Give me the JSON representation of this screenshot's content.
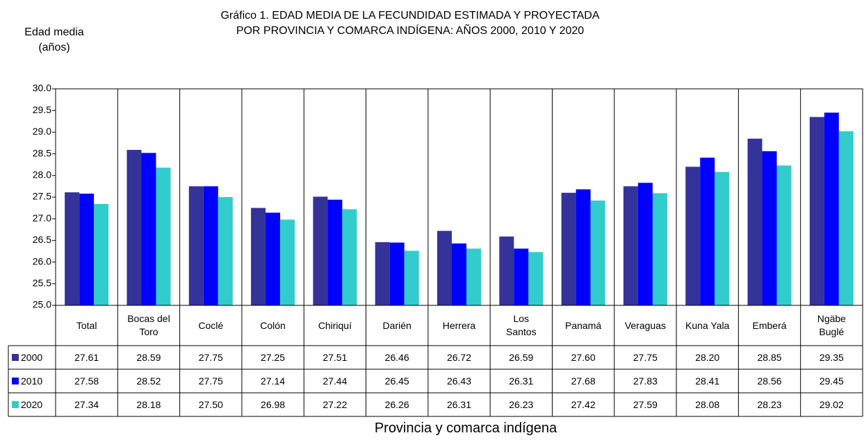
{
  "chart_data": {
    "type": "bar",
    "title": "Gráfico 1.  EDAD MEDIA DE LA FECUNDIDAD ESTIMADA Y PROYECTADA\nPOR PROVINCIA Y COMARCA INDÍGENA: AÑOS 2000, 2010 Y 2020",
    "y_label": "Edad media\n(años)",
    "x_label": "Provincia y comarca indígena",
    "categories": [
      "Total",
      "Bocas del\nToro",
      "Coclé",
      "Colón",
      "Chiriquí",
      "Darién",
      "Herrera",
      "Los\nSantos",
      "Panamá",
      "Veraguas",
      "Kuna Yala",
      "Emberá",
      "Ngäbe\nBuglé"
    ],
    "series": [
      {
        "name": "2000",
        "color": "#333399",
        "values": [
          27.61,
          28.59,
          27.75,
          27.25,
          27.51,
          26.46,
          26.72,
          26.59,
          27.6,
          27.75,
          28.2,
          28.85,
          29.35
        ],
        "value_labels": [
          "27.61",
          "28.59",
          "27.75",
          "27.25",
          "27.51",
          "26.46",
          "26.72",
          "26.59",
          "27.60",
          "27.75",
          "28.20",
          "28.85",
          "29.35"
        ]
      },
      {
        "name": "2010",
        "color": "#0000ff",
        "values": [
          27.58,
          28.52,
          27.75,
          27.14,
          27.44,
          26.45,
          26.43,
          26.31,
          27.68,
          27.83,
          28.41,
          28.56,
          29.45
        ],
        "value_labels": [
          "27.58",
          "28.52",
          "27.75",
          "27.14",
          "27.44",
          "26.45",
          "26.43",
          "26.31",
          "27.68",
          "27.83",
          "28.41",
          "28.56",
          "29.45"
        ]
      },
      {
        "name": "2020",
        "color": "#33cccc",
        "values": [
          27.34,
          28.18,
          27.5,
          26.98,
          27.22,
          26.26,
          26.31,
          26.23,
          27.42,
          27.59,
          28.08,
          28.23,
          29.02
        ],
        "value_labels": [
          "27.34",
          "28.18",
          "27.50",
          "26.98",
          "27.22",
          "26.26",
          "26.31",
          "26.23",
          "27.42",
          "27.59",
          "28.08",
          "28.23",
          "29.02"
        ]
      }
    ],
    "ylim": [
      25,
      30
    ],
    "yticks": [
      {
        "value": 25,
        "label": "25.0"
      },
      25.5,
      {
        "value": 26,
        "label": "26.0"
      },
      26.5,
      {
        "value": 27,
        "label": "27.0"
      },
      27.5,
      {
        "value": 28,
        "label": "28.0"
      },
      28.5,
      {
        "value": 29,
        "label": "29.0"
      },
      29.5,
      {
        "value": 30,
        "label": "30.0"
      }
    ]
  }
}
